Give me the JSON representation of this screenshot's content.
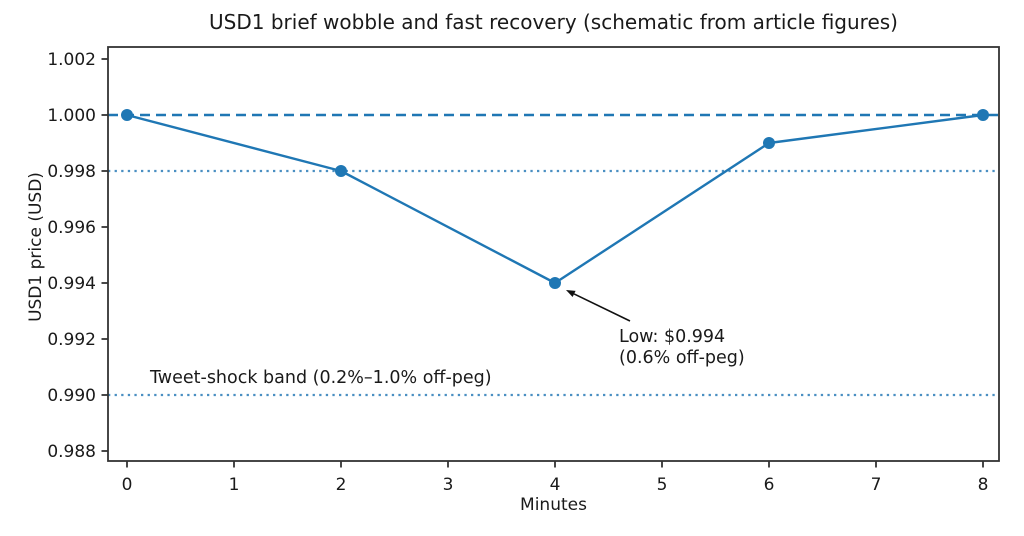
{
  "chart_data": {
    "type": "line",
    "title": "USD1 brief wobble and fast recovery (schematic from article figures)",
    "xlabel": "Minutes",
    "ylabel": "USD1 price (USD)",
    "x": [
      0,
      2,
      4,
      6,
      8
    ],
    "y": [
      1.0,
      0.998,
      0.994,
      0.999,
      1.0
    ],
    "series_name": "USD1 price",
    "series_color": "#1f77b4",
    "marker": "circle",
    "xlim": [
      -0.18,
      8.15
    ],
    "ylim": [
      0.9876,
      1.0026
    ],
    "grid": false,
    "legend": null,
    "xticks": {
      "values": [
        0,
        1,
        2,
        3,
        4,
        5,
        6,
        7,
        8
      ],
      "labels": [
        "0",
        "1",
        "2",
        "3",
        "4",
        "5",
        "6",
        "7",
        "8"
      ]
    },
    "yticks": {
      "values": [
        0.988,
        0.99,
        0.992,
        0.994,
        0.996,
        0.998,
        1.0,
        1.002
      ],
      "labels": [
        "0.988",
        "0.990",
        "0.992",
        "0.994",
        "0.996",
        "0.998",
        "1.000",
        "1.002"
      ]
    },
    "reference_lines": [
      {
        "name": "peg-line",
        "y": 1.0,
        "style": "dashed",
        "color": "#1f77b4"
      },
      {
        "name": "band-upper",
        "y": 0.998,
        "style": "dotted",
        "color": "#4a8fc2"
      },
      {
        "name": "band-lower",
        "y": 0.99,
        "style": "dotted",
        "color": "#4a8fc2"
      }
    ],
    "annotation_low": {
      "lines": [
        "Low: $0.994",
        "(0.6% off-peg)"
      ],
      "points_to": {
        "x": 4,
        "y": 0.994
      },
      "arrow_color": "#111111"
    },
    "band_label": "Tweet-shock band (0.2%–1.0% off-peg)",
    "axis_color": "#333333",
    "text_color": "#1a1a1a"
  }
}
